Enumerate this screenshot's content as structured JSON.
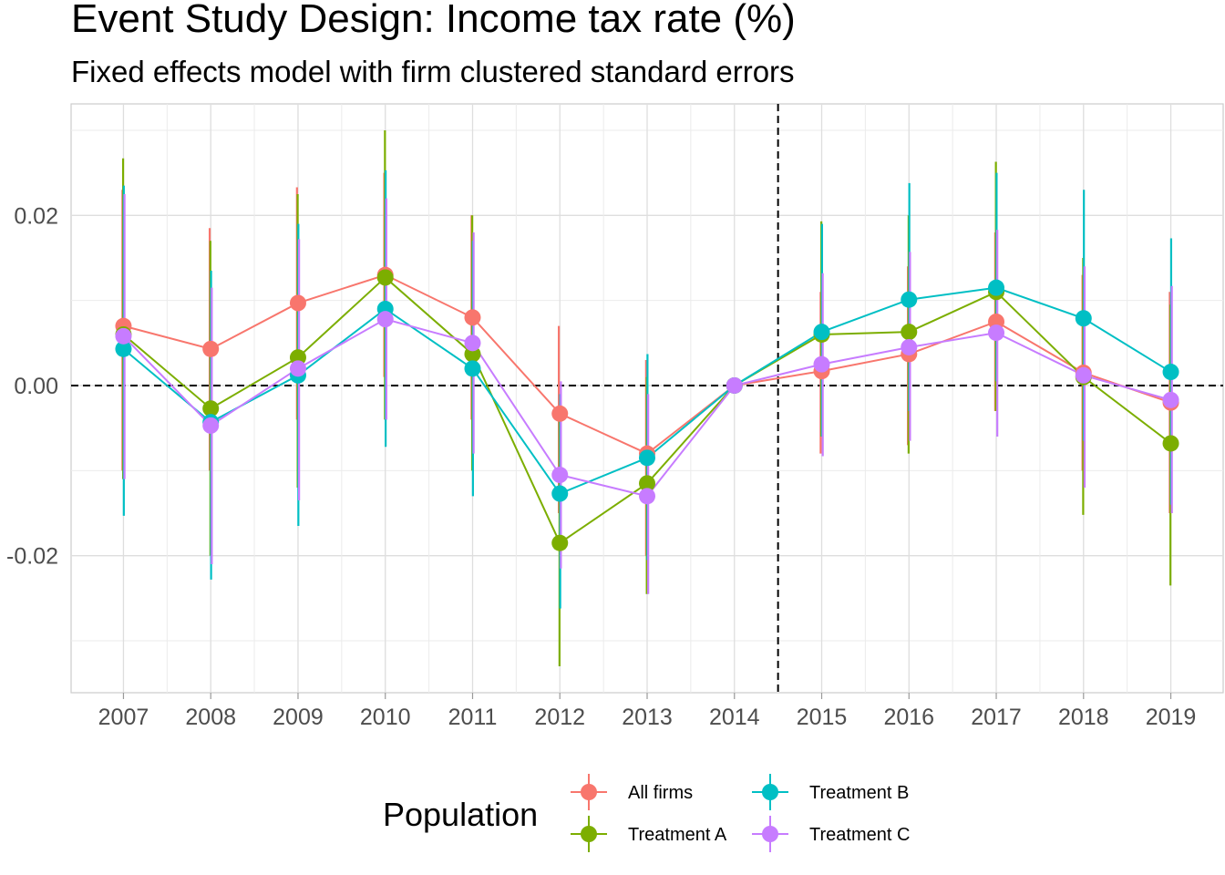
{
  "chart_data": {
    "type": "line",
    "title": "Event Study Design: Income tax rate  (%)",
    "subtitle": "Fixed effects model with firm clustered standard errors",
    "xlabel": "",
    "ylabel": "",
    "categories": [
      "2007",
      "2008",
      "2009",
      "2010",
      "2011",
      "2012",
      "2013",
      "2014",
      "2015",
      "2016",
      "2017",
      "2018",
      "2019"
    ],
    "xlim": [
      2006.4,
      2019.6
    ],
    "ylim": [
      -0.0361,
      0.0331
    ],
    "y_ticks": [
      -0.02,
      0.0,
      0.02
    ],
    "y_tick_labels": [
      "-0.02",
      "0.00",
      "0.02"
    ],
    "reference_lines": {
      "horizontal_y": 0.0,
      "vertical_x": 2014.5
    },
    "grid": true,
    "legend": {
      "title": "Population",
      "position": "bottom"
    },
    "series": [
      {
        "name": "All firms",
        "color": "#F8766D",
        "values": [
          0.007,
          0.0043,
          0.0097,
          0.013,
          0.008,
          -0.0033,
          -0.008,
          0.0,
          0.0017,
          0.0037,
          0.0075,
          0.0015,
          -0.002
        ],
        "ci_low": [
          -0.01,
          -0.01,
          -0.004,
          0.001,
          -0.004,
          -0.015,
          -0.02,
          0.0,
          -0.008,
          -0.007,
          -0.003,
          -0.01,
          -0.015
        ],
        "ci_high": [
          0.023,
          0.0185,
          0.0233,
          0.025,
          0.02,
          0.007,
          0.003,
          0.0,
          0.011,
          0.014,
          0.018,
          0.013,
          0.011
        ]
      },
      {
        "name": "Treatment A",
        "color": "#7CAE00",
        "values": [
          0.006,
          -0.0027,
          0.0033,
          0.0127,
          0.0037,
          -0.0185,
          -0.0115,
          0.0,
          0.006,
          0.0063,
          0.011,
          0.001,
          -0.0068
        ],
        "ci_low": [
          -0.011,
          -0.02,
          -0.012,
          -0.004,
          -0.01,
          -0.033,
          -0.0245,
          0.0,
          -0.006,
          -0.008,
          -0.003,
          -0.0152,
          -0.0235
        ],
        "ci_high": [
          0.0267,
          0.017,
          0.0225,
          0.03,
          0.02,
          -0.004,
          0.001,
          0.0,
          0.0193,
          0.02,
          0.0263,
          0.015,
          0.0095
        ]
      },
      {
        "name": "Treatment B",
        "color": "#00BFC4",
        "values": [
          0.0043,
          -0.0043,
          0.0012,
          0.009,
          0.002,
          -0.0127,
          -0.0085,
          0.0,
          0.0063,
          0.0101,
          0.0115,
          0.0079,
          0.0016
        ],
        "ci_low": [
          -0.0153,
          -0.0228,
          -0.0165,
          -0.0072,
          -0.013,
          -0.0262,
          -0.0205,
          0.0,
          -0.006,
          -0.003,
          0.0005,
          -0.0065,
          -0.014
        ],
        "ci_high": [
          0.0235,
          0.0135,
          0.019,
          0.0253,
          0.017,
          -0.001,
          0.0037,
          0.0,
          0.019,
          0.0238,
          0.025,
          0.023,
          0.0173
        ]
      },
      {
        "name": "Treatment C",
        "color": "#C77CFF",
        "values": [
          0.0058,
          -0.0047,
          0.002,
          0.0078,
          0.005,
          -0.0105,
          -0.013,
          0.0,
          0.0025,
          0.0045,
          0.0062,
          0.0012,
          -0.0017
        ],
        "ci_low": [
          -0.011,
          -0.021,
          -0.0135,
          -0.004,
          -0.008,
          -0.0215,
          -0.0245,
          0.0,
          -0.0083,
          -0.0065,
          -0.006,
          -0.012,
          -0.015
        ],
        "ci_high": [
          0.0225,
          0.0115,
          0.0172,
          0.022,
          0.018,
          0.0005,
          -0.001,
          0.0,
          0.0132,
          0.0157,
          0.0183,
          0.014,
          0.0117
        ]
      }
    ]
  }
}
